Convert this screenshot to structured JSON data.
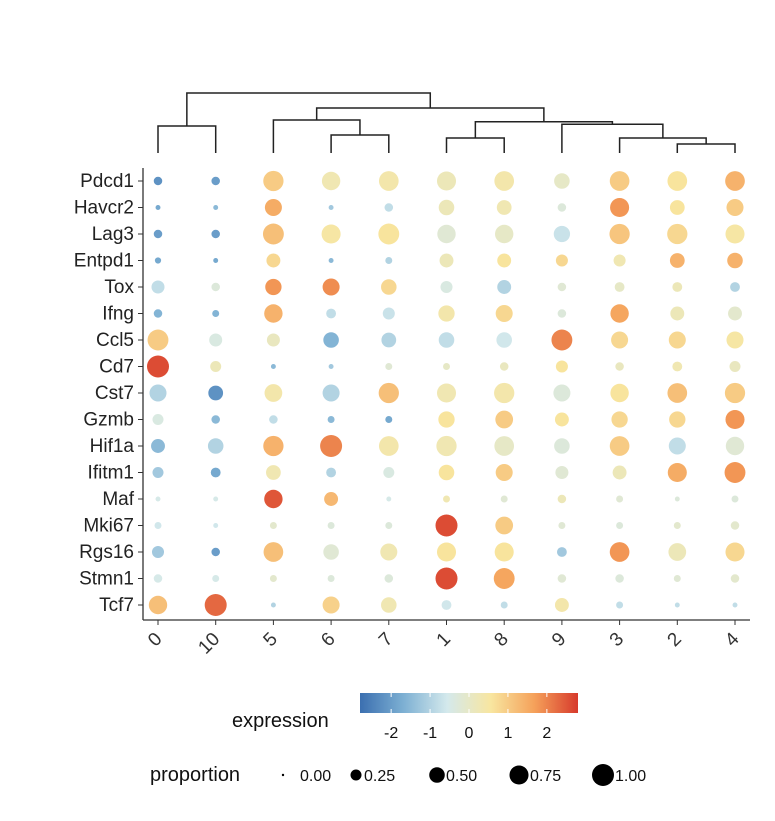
{
  "chart_data": {
    "type": "dotplot",
    "title": "",
    "xlabel": "",
    "ylabel": "",
    "genes": [
      "Pdcd1",
      "Havcr2",
      "Lag3",
      "Entpd1",
      "Tox",
      "Ifng",
      "Ccl5",
      "Cd7",
      "Cst7",
      "Gzmb",
      "Hif1a",
      "Ifitm1",
      "Maf",
      "Mki67",
      "Rgs16",
      "Stmn1",
      "Tcf7"
    ],
    "clusters": [
      "0",
      "10",
      "5",
      "6",
      "7",
      "1",
      "8",
      "9",
      "3",
      "2",
      "4"
    ],
    "expression": [
      [
        -2.2,
        -2.0,
        1.0,
        0.3,
        0.4,
        0.2,
        0.4,
        0.0,
        1.0,
        0.6,
        1.4
      ],
      [
        -1.8,
        -1.5,
        1.5,
        -1.2,
        -0.8,
        0.2,
        0.3,
        -0.3,
        1.8,
        0.6,
        1.0
      ],
      [
        -2.0,
        -2.0,
        1.2,
        0.5,
        0.6,
        -0.2,
        0.0,
        -0.7,
        1.1,
        0.8,
        0.5
      ],
      [
        -1.8,
        -1.8,
        0.8,
        -1.5,
        -1.0,
        0.2,
        0.6,
        0.8,
        0.3,
        1.4,
        1.4
      ],
      [
        -0.8,
        -0.3,
        1.8,
        1.9,
        0.8,
        -0.4,
        -1.0,
        -0.2,
        0.0,
        0.2,
        -1.0
      ],
      [
        -1.6,
        -1.6,
        1.4,
        -0.8,
        -0.7,
        0.4,
        0.8,
        -0.3,
        1.6,
        0.2,
        -0.1
      ],
      [
        1.0,
        -0.4,
        0.1,
        -1.6,
        -1.0,
        -0.8,
        -0.6,
        2.0,
        0.8,
        0.8,
        0.5
      ],
      [
        2.6,
        0.2,
        -1.5,
        -1.2,
        -0.2,
        0.0,
        0.1,
        0.6,
        0.1,
        0.3,
        0.1
      ],
      [
        -1.0,
        -2.2,
        0.4,
        -1.0,
        1.2,
        0.3,
        0.4,
        -0.3,
        0.6,
        1.2,
        1.0
      ],
      [
        -0.4,
        -1.5,
        -0.8,
        -1.5,
        -1.8,
        0.6,
        1.0,
        0.6,
        0.8,
        0.8,
        1.8
      ],
      [
        -1.5,
        -1.0,
        1.4,
        2.0,
        0.4,
        0.3,
        0.0,
        -0.3,
        1.0,
        -0.8,
        -0.2
      ],
      [
        -1.2,
        -1.8,
        0.3,
        -1.0,
        -0.4,
        0.6,
        1.0,
        -0.2,
        0.2,
        1.5,
        1.8
      ],
      [
        -0.5,
        -0.5,
        2.5,
        1.3,
        -0.5,
        0.3,
        -0.2,
        0.2,
        -0.2,
        -0.3,
        -0.3
      ],
      [
        -0.6,
        -0.6,
        -0.1,
        -0.3,
        -0.3,
        2.6,
        1.0,
        -0.2,
        -0.3,
        -0.1,
        -0.1
      ],
      [
        -1.2,
        -2.0,
        1.2,
        -0.2,
        0.3,
        0.6,
        0.6,
        -1.2,
        1.8,
        0.2,
        0.8
      ],
      [
        -0.5,
        -0.5,
        -0.1,
        -0.3,
        -0.3,
        2.6,
        1.6,
        -0.2,
        -0.3,
        -0.2,
        -0.1
      ],
      [
        1.2,
        2.3,
        -1.0,
        0.9,
        0.3,
        -0.6,
        -0.8,
        0.4,
        -0.8,
        -0.8,
        -0.8
      ]
    ],
    "proportion": [
      [
        0.15,
        0.15,
        0.85,
        0.7,
        0.8,
        0.75,
        0.8,
        0.5,
        0.8,
        0.8,
        0.8
      ],
      [
        0.05,
        0.05,
        0.6,
        0.05,
        0.15,
        0.5,
        0.45,
        0.15,
        0.75,
        0.45,
        0.6
      ],
      [
        0.15,
        0.15,
        0.9,
        0.75,
        0.9,
        0.7,
        0.7,
        0.55,
        0.85,
        0.85,
        0.75
      ],
      [
        0.08,
        0.05,
        0.4,
        0.05,
        0.1,
        0.4,
        0.4,
        0.3,
        0.3,
        0.45,
        0.5
      ],
      [
        0.35,
        0.15,
        0.55,
        0.6,
        0.5,
        0.3,
        0.4,
        0.15,
        0.2,
        0.2,
        0.2
      ],
      [
        0.15,
        0.1,
        0.7,
        0.2,
        0.3,
        0.55,
        0.6,
        0.15,
        0.7,
        0.4,
        0.4
      ],
      [
        0.9,
        0.35,
        0.35,
        0.5,
        0.45,
        0.5,
        0.5,
        0.9,
        0.6,
        0.6,
        0.6
      ],
      [
        1.0,
        0.25,
        0.05,
        0.05,
        0.1,
        0.1,
        0.15,
        0.3,
        0.15,
        0.2,
        0.25
      ],
      [
        0.6,
        0.45,
        0.65,
        0.6,
        0.85,
        0.75,
        0.85,
        0.6,
        0.7,
        0.8,
        0.85
      ],
      [
        0.25,
        0.15,
        0.15,
        0.1,
        0.1,
        0.55,
        0.65,
        0.4,
        0.55,
        0.55,
        0.75
      ],
      [
        0.4,
        0.5,
        0.85,
        1.0,
        0.8,
        0.85,
        0.8,
        0.5,
        0.8,
        0.6,
        0.7
      ],
      [
        0.25,
        0.2,
        0.45,
        0.2,
        0.25,
        0.5,
        0.6,
        0.35,
        0.4,
        0.75,
        0.9
      ],
      [
        0.05,
        0.05,
        0.7,
        0.4,
        0.05,
        0.1,
        0.1,
        0.15,
        0.1,
        0.05,
        0.1
      ],
      [
        0.1,
        0.05,
        0.1,
        0.1,
        0.1,
        1.0,
        0.65,
        0.1,
        0.1,
        0.1,
        0.15
      ],
      [
        0.3,
        0.15,
        0.8,
        0.5,
        0.6,
        0.75,
        0.75,
        0.2,
        0.8,
        0.65,
        0.75
      ],
      [
        0.15,
        0.1,
        0.1,
        0.1,
        0.15,
        1.0,
        0.9,
        0.15,
        0.15,
        0.1,
        0.15
      ],
      [
        0.7,
        1.0,
        0.05,
        0.6,
        0.5,
        0.2,
        0.1,
        0.4,
        0.1,
        0.05,
        0.05
      ]
    ],
    "color_scale": {
      "title": "expression",
      "ticks": [
        "-2",
        "-1",
        "0",
        "1",
        "2"
      ],
      "tick_values": [
        -2,
        -1,
        0,
        1,
        2
      ],
      "range": [
        -2.8,
        2.8
      ],
      "colors": [
        "#3b6fb0",
        "#7db0d3",
        "#d4e9ec",
        "#f8e6a0",
        "#f5a15a",
        "#d73a2c"
      ]
    },
    "size_scale": {
      "title": "proportion",
      "labels": [
        "0.00",
        "0.25",
        "0.50",
        "0.75",
        "1.00"
      ],
      "values": [
        0,
        0.25,
        0.5,
        0.75,
        1.0
      ]
    },
    "dendrogram": {
      "merges": [
        {
          "left": "0",
          "right": "10",
          "height": 0.45
        },
        {
          "left": "6",
          "right": "7",
          "height": 0.3
        },
        {
          "left": "5",
          "right": "6+7",
          "height": 0.55
        },
        {
          "left": "1",
          "right": "8",
          "height": 0.25
        },
        {
          "left": "2",
          "right": "4",
          "height": 0.15
        },
        {
          "left": "3",
          "right": "2+4",
          "height": 0.25
        },
        {
          "left": "9",
          "right": "3+2+4",
          "height": 0.48
        },
        {
          "left": "1+8",
          "right": "9+3+2+4",
          "height": 0.52
        },
        {
          "left": "5+6+7",
          "right": "1+8+9+3+2+4",
          "height": 0.75
        },
        {
          "left": "0+10",
          "right": "rest",
          "height": 1.0
        }
      ]
    },
    "grid": false,
    "legend_position": "bottom"
  }
}
